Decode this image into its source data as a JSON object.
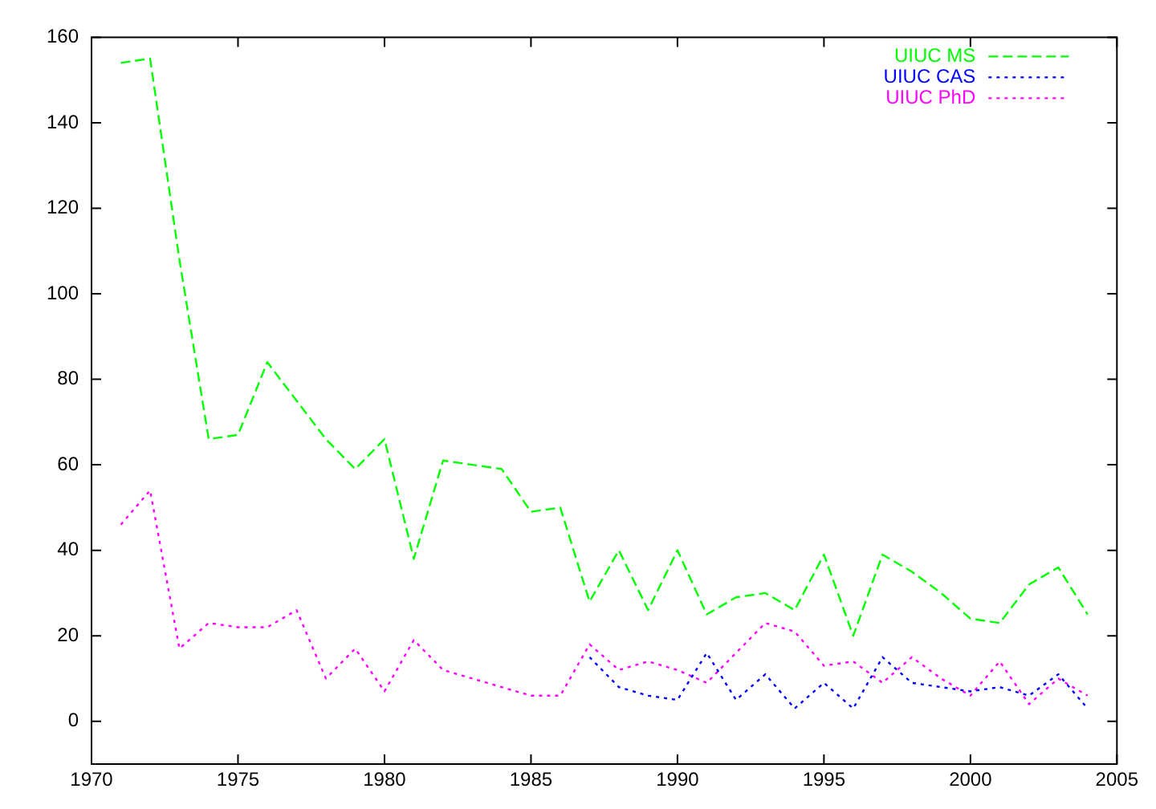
{
  "chart_data": {
    "type": "line",
    "xlim": [
      1970,
      2005
    ],
    "xticks": [
      1970,
      1975,
      1980,
      1985,
      1990,
      1995,
      2000,
      2005
    ],
    "ylim": [
      -10,
      160
    ],
    "yticks": [
      0,
      20,
      40,
      60,
      80,
      100,
      120,
      140,
      160
    ],
    "legend": "top right",
    "grid": false,
    "marker": "none",
    "series": [
      {
        "name": "UIUC MS",
        "color": "#00ff00",
        "line_style": "dashed",
        "x": [
          1971,
          1972,
          1973,
          1974,
          1975,
          1976,
          1977,
          1978,
          1979,
          1980,
          1981,
          1982,
          1983,
          1984,
          1985,
          1986,
          1987,
          1988,
          1989,
          1990,
          1991,
          1992,
          1993,
          1994,
          1995,
          1996,
          1997,
          1998,
          1999,
          2000,
          2001,
          2002,
          2003,
          2004
        ],
        "values": [
          154,
          155,
          108,
          66,
          67,
          84,
          75,
          66,
          59,
          66,
          38,
          61,
          60,
          59,
          49,
          50,
          28,
          40,
          26,
          40,
          25,
          29,
          30,
          26,
          39,
          20,
          39,
          35,
          30,
          24,
          23,
          32,
          36,
          25
        ]
      },
      {
        "name": "UIUC CAS",
        "color": "#0000ff",
        "line_style": "dotted",
        "x": [
          1987,
          1988,
          1989,
          1990,
          1991,
          1992,
          1993,
          1994,
          1995,
          1996,
          1997,
          1998,
          1999,
          2000,
          2001,
          2002,
          2003,
          2004
        ],
        "values": [
          15,
          8,
          6,
          5,
          16,
          5,
          11,
          3,
          9,
          3,
          15,
          9,
          8,
          7,
          8,
          6,
          11,
          3
        ]
      },
      {
        "name": "UIUC PhD",
        "color": "#ff00ff",
        "line_style": "dotted",
        "x": [
          1971,
          1972,
          1973,
          1974,
          1975,
          1976,
          1977,
          1978,
          1979,
          1980,
          1981,
          1982,
          1983,
          1984,
          1985,
          1986,
          1987,
          1988,
          1989,
          1990,
          1991,
          1992,
          1993,
          1994,
          1995,
          1996,
          1997,
          1998,
          1999,
          2000,
          2001,
          2002,
          2003,
          2004
        ],
        "values": [
          46,
          54,
          17,
          23,
          22,
          22,
          26,
          10,
          17,
          7,
          19,
          12,
          10,
          8,
          6,
          6,
          18,
          12,
          14,
          12,
          9,
          16,
          23,
          21,
          13,
          14,
          9,
          15,
          10,
          6,
          14,
          4,
          10,
          6
        ]
      }
    ]
  }
}
